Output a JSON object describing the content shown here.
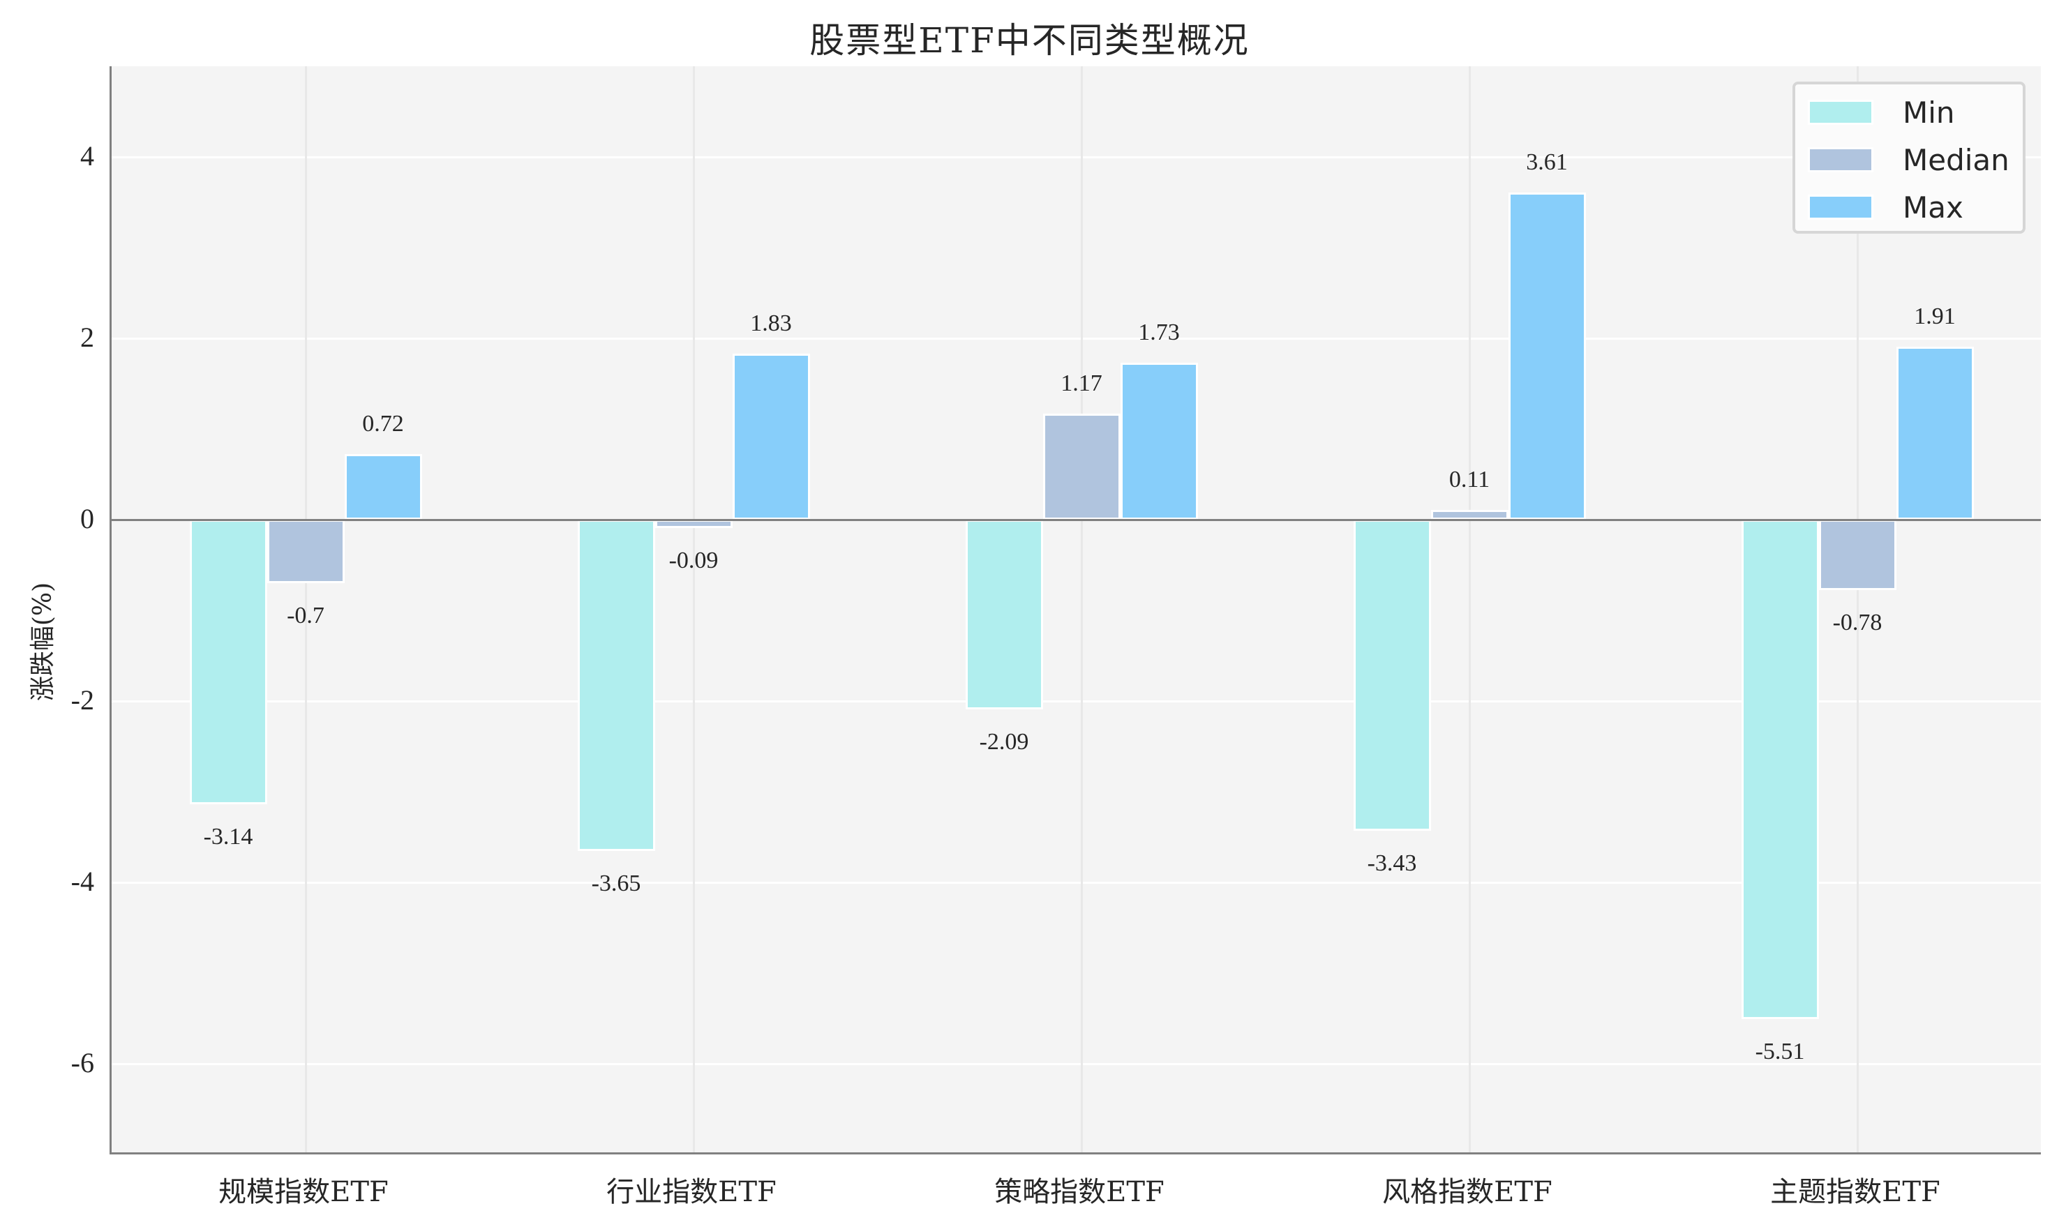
{
  "title": "股票型ETF中不同类型概况",
  "ylabel": "涨跌幅(%)",
  "legend": {
    "items": [
      {
        "label": "Min",
        "color": "#b0eeee"
      },
      {
        "label": "Median",
        "color": "#b0c4de"
      },
      {
        "label": "Max",
        "color": "#87cefa"
      }
    ]
  },
  "yticks": [
    "4",
    "2",
    "0",
    "-2",
    "-4",
    "-6"
  ],
  "chart_data": {
    "type": "bar",
    "title": "股票型ETF中不同类型概况",
    "xlabel": "",
    "ylabel": "涨跌幅(%)",
    "ylim": [
      -7,
      5
    ],
    "yticks": [
      4,
      2,
      0,
      -2,
      -4,
      -6
    ],
    "grid": true,
    "legend_position": "upper right",
    "categories": [
      "规模指数ETF",
      "行业指数ETF",
      "策略指数ETF",
      "风格指数ETF",
      "主题指数ETF"
    ],
    "series": [
      {
        "name": "Min",
        "color": "#b0eeee",
        "values": [
          -3.14,
          -3.65,
          -2.09,
          -3.43,
          -5.51
        ],
        "labels": [
          "-3.14",
          "-3.65",
          "-2.09",
          "-3.43",
          "-5.51"
        ]
      },
      {
        "name": "Median",
        "color": "#b0c4de",
        "values": [
          -0.7,
          -0.09,
          1.17,
          0.11,
          -0.78
        ],
        "labels": [
          "-0.7",
          "-0.09",
          "1.17",
          "0.11",
          "-0.78"
        ]
      },
      {
        "name": "Max",
        "color": "#87cefa",
        "values": [
          0.72,
          1.83,
          1.73,
          3.61,
          1.91
        ],
        "labels": [
          "0.72",
          "1.83",
          "1.73",
          "3.61",
          "1.91"
        ]
      }
    ]
  }
}
